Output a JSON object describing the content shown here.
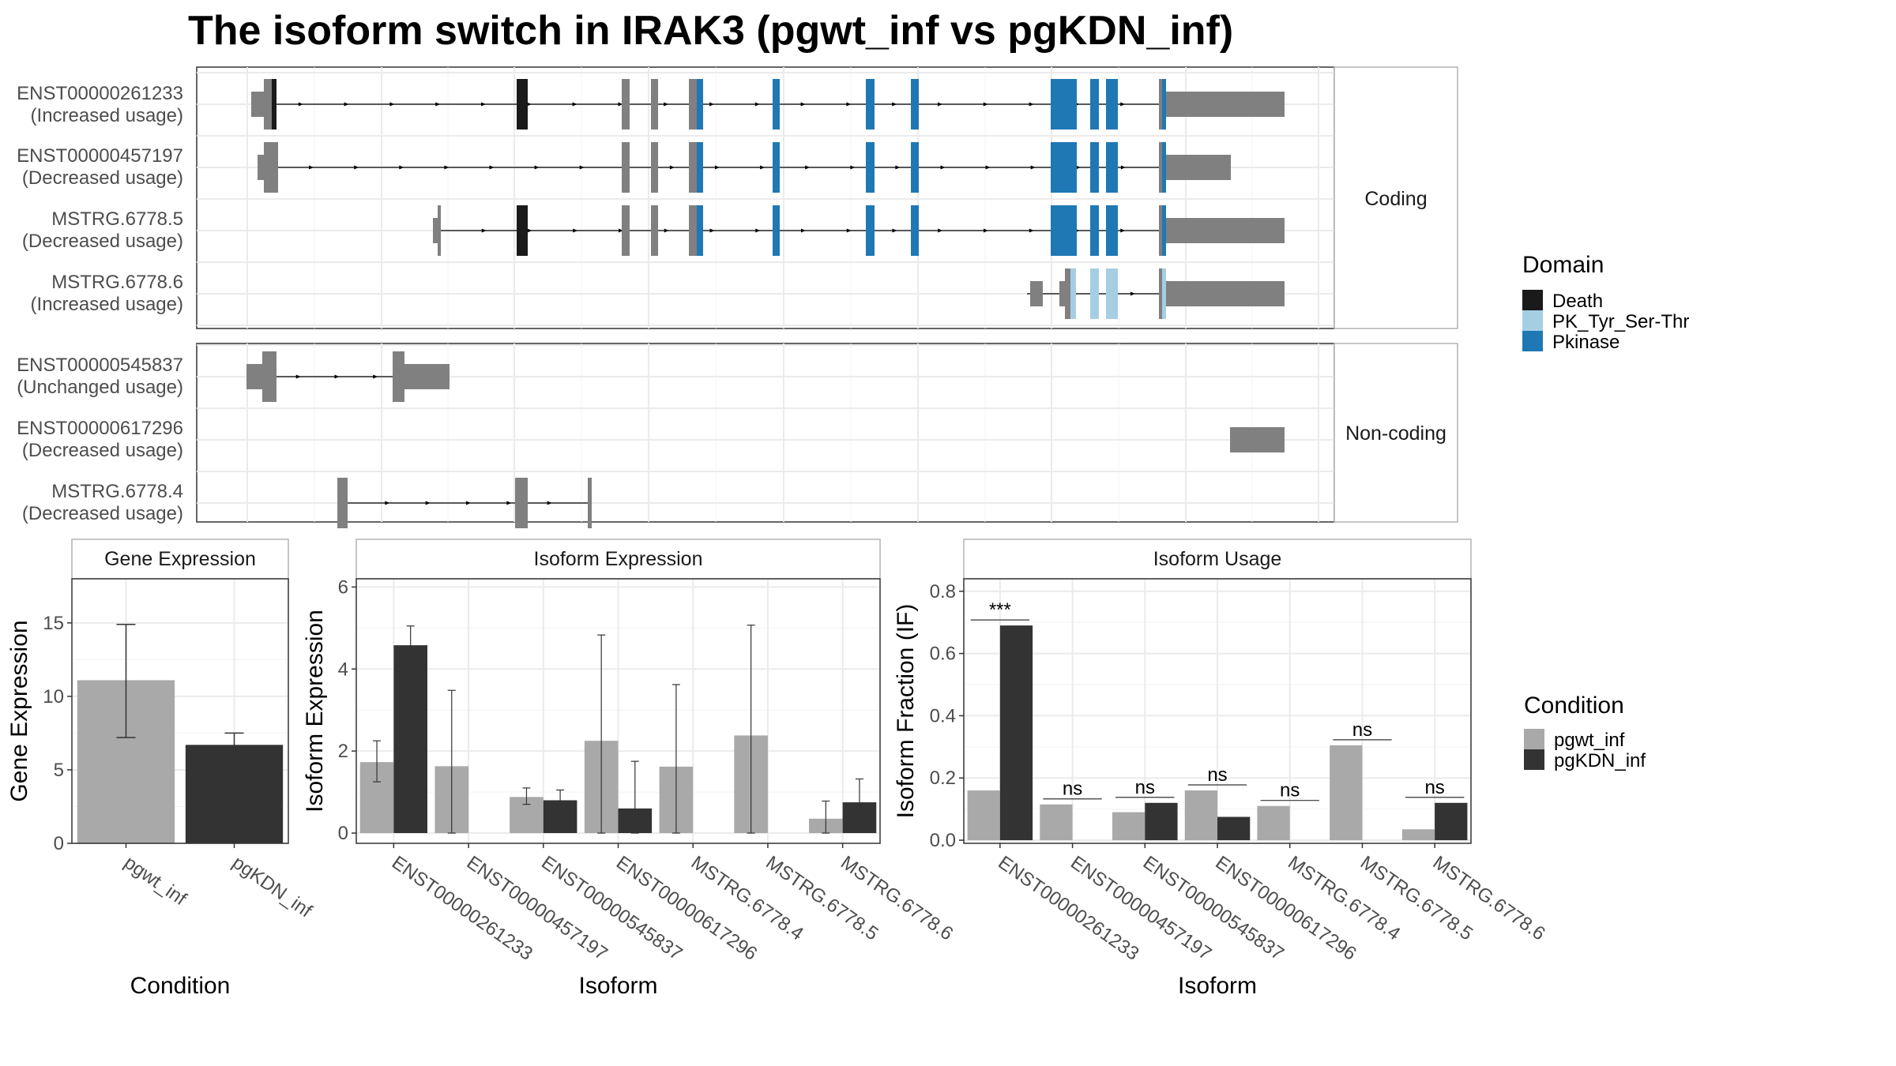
{
  "title": "The isoform switch in IRAK3 (pgwt_inf vs pgKDN_inf)",
  "colors": {
    "Death": "#1a1a1a",
    "PK_Tyr_Ser-Thr": "#a6cee3",
    "Pkinase": "#1f78b4",
    "exon": "#808080",
    "pgwt_inf": "#a9a9a9",
    "pgKDN_inf": "#333333",
    "grid": "#ebebeb",
    "panel_border": "#333333",
    "strip_border": "#b3b3b3"
  },
  "structure": {
    "coding_strip": "Coding",
    "noncoding_strip": "Non-coding",
    "coding": [
      {
        "id": "ENST00000261233",
        "usage": "(Increased usage)"
      },
      {
        "id": "ENST00000457197",
        "usage": "(Decreased usage)"
      },
      {
        "id": "MSTRG.6778.5",
        "usage": "(Decreased usage)"
      },
      {
        "id": "MSTRG.6778.6",
        "usage": "(Increased usage)"
      }
    ],
    "noncoding": [
      {
        "id": "ENST00000545837",
        "usage": "(Unchanged usage)"
      },
      {
        "id": "ENST00000617296",
        "usage": "(Decreased usage)"
      },
      {
        "id": "MSTRG.6778.4",
        "usage": "(Decreased usage)"
      }
    ]
  },
  "legend": {
    "domain_title": "Domain",
    "domains": [
      "Death",
      "PK_Tyr_Ser-Thr",
      "Pkinase"
    ],
    "condition_title": "Condition",
    "conditions": [
      "pgwt_inf",
      "pgKDN_inf"
    ]
  },
  "chart_data": [
    {
      "type": "bar",
      "panel": "Gene Expression",
      "xlabel": "Condition",
      "ylabel": "Gene Expression",
      "categories": [
        "pgwt_inf",
        "pgKDN_inf"
      ],
      "values": [
        11.1,
        6.7
      ],
      "error_low": [
        7.2,
        5.9
      ],
      "error_high": [
        14.9,
        7.5
      ],
      "ylim": [
        0,
        18
      ],
      "yticks": [
        0,
        5,
        10,
        15
      ]
    },
    {
      "type": "bar",
      "panel": "Isoform Expression",
      "xlabel": "Isoform",
      "ylabel": "Isoform Expression",
      "categories": [
        "ENST00000261233",
        "ENST00000457197",
        "ENST00000545837",
        "ENST00000617296",
        "MSTRG.6778.4",
        "MSTRG.6778.5",
        "MSTRG.6778.6"
      ],
      "series": [
        {
          "name": "pgwt_inf",
          "values": [
            1.73,
            1.63,
            0.88,
            2.25,
            1.62,
            2.38,
            0.35
          ],
          "error_low": [
            1.25,
            0.0,
            0.7,
            0.0,
            0.0,
            0.0,
            0.0
          ],
          "error_high": [
            2.25,
            3.48,
            1.1,
            4.83,
            3.62,
            5.07,
            0.78
          ]
        },
        {
          "name": "pgKDN_inf",
          "values": [
            4.58,
            0.0,
            0.8,
            0.6,
            0.0,
            0.0,
            0.75
          ],
          "error_low": [
            4.12,
            0.0,
            0.55,
            0.0,
            0.0,
            0.0,
            0.2
          ],
          "error_high": [
            5.05,
            0.0,
            1.05,
            1.75,
            0.0,
            0.0,
            1.32
          ]
        }
      ],
      "ylim": [
        -0.25,
        6.2
      ],
      "yticks": [
        0,
        2,
        4,
        6
      ]
    },
    {
      "type": "bar",
      "panel": "Isoform Usage",
      "xlabel": "Isoform",
      "ylabel": "Isoform Fraction (IF)",
      "categories": [
        "ENST00000261233",
        "ENST00000457197",
        "ENST00000545837",
        "ENST00000617296",
        "MSTRG.6778.4",
        "MSTRG.6778.5",
        "MSTRG.6778.6"
      ],
      "series": [
        {
          "name": "pgwt_inf",
          "values": [
            0.16,
            0.115,
            0.09,
            0.16,
            0.11,
            0.305,
            0.035
          ]
        },
        {
          "name": "pgKDN_inf",
          "values": [
            0.69,
            0.0,
            0.12,
            0.075,
            0.0,
            0.0,
            0.12
          ]
        }
      ],
      "significance": [
        "***",
        "ns",
        "ns",
        "ns",
        "ns",
        "ns",
        "ns"
      ],
      "ylim": [
        -0.01,
        0.84
      ],
      "yticks": [
        0.0,
        0.2,
        0.4,
        0.6,
        0.8
      ]
    }
  ]
}
